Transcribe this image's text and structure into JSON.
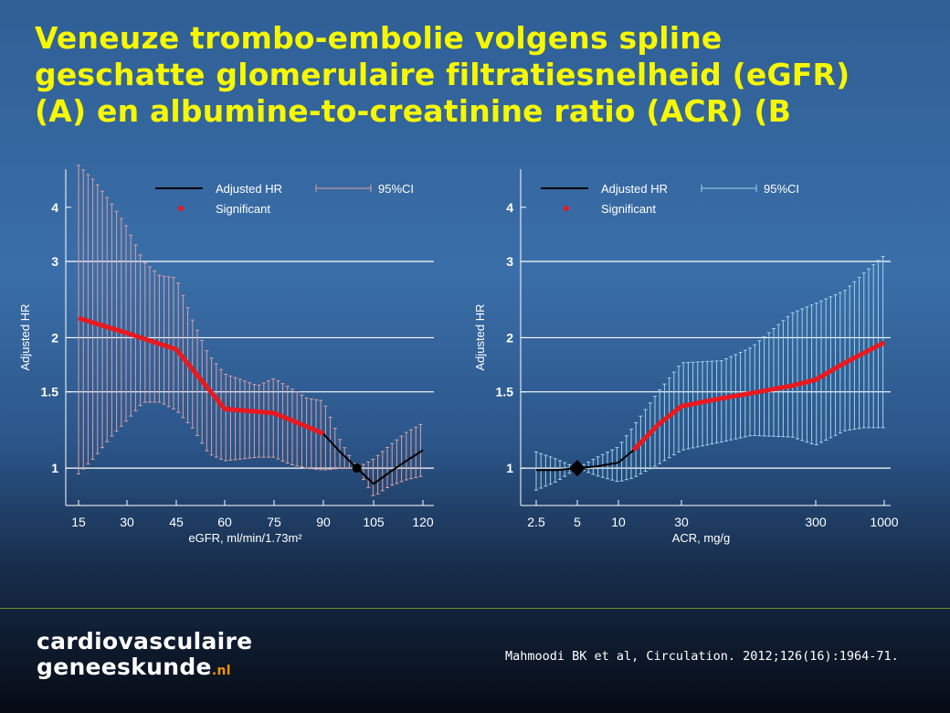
{
  "slide": {
    "title_lines": [
      "Veneuze trombo-embolie volgens spline",
      "geschatte glomerulaire filtratiesnelheid (eGFR)",
      "(A) en albumine-to-creatinine ratio (ACR) (B"
    ]
  },
  "colors": {
    "title": "#f7f700",
    "red_fit": "#e8191f",
    "black_fit": "#000000",
    "ci_a": "#d9a0a3",
    "ci_b": "#9fd3e9",
    "gridline": "#ffffff"
  },
  "chart_data": [
    {
      "type": "line",
      "panel": "A",
      "xlabel": "eGFR, ml/min/1.73m²",
      "ylabel": "Adjusted HR",
      "x_ticks": [
        15,
        30,
        45,
        60,
        75,
        90,
        105,
        120
      ],
      "x_tick_labels": [
        "15",
        "30",
        "45",
        "60",
        "75",
        "90",
        "105",
        "120"
      ],
      "xlim": [
        12,
        123
      ],
      "y_scale": "log",
      "y_ticks": [
        1,
        1.5,
        2,
        3,
        4
      ],
      "y_tick_labels": [
        "1",
        "1.5",
        "2",
        "3",
        "4"
      ],
      "ylim": [
        0.8,
        4.9
      ],
      "grid": "horizontal",
      "legend": {
        "placement": "top",
        "entries": [
          "Adjusted HR",
          "95%CI",
          "Significant"
        ]
      },
      "reference_point": {
        "x": 100,
        "y": 1
      },
      "series": [
        {
          "name": "Adjusted HR",
          "x": [
            15,
            30,
            45,
            60,
            75,
            88,
            90,
            95,
            100,
            105,
            110,
            115,
            120
          ],
          "y": [
            2.22,
            2.05,
            1.88,
            1.37,
            1.34,
            1.22,
            1.2,
            1.09,
            1.0,
            0.92,
            0.98,
            1.04,
            1.1
          ],
          "significant_x_range": [
            15,
            90
          ]
        }
      ],
      "ci": {
        "x": [
          15,
          20,
          25,
          30,
          35,
          40,
          45,
          50,
          55,
          60,
          65,
          70,
          75,
          80,
          85,
          90,
          95,
          100,
          105,
          110,
          115,
          120
        ],
        "lower": [
          0.97,
          1.06,
          1.18,
          1.29,
          1.42,
          1.42,
          1.36,
          1.24,
          1.08,
          1.04,
          1.05,
          1.06,
          1.06,
          1.02,
          1.0,
          0.99,
          1.0,
          1.0,
          0.86,
          0.91,
          0.94,
          0.96
        ],
        "upper": [
          5.0,
          4.6,
          4.1,
          3.6,
          3.0,
          2.78,
          2.75,
          2.2,
          1.83,
          1.65,
          1.6,
          1.55,
          1.61,
          1.53,
          1.45,
          1.43,
          1.16,
          1.0,
          1.05,
          1.13,
          1.21,
          1.27
        ]
      }
    },
    {
      "type": "line",
      "panel": "B",
      "xlabel": "ACR, mg/g",
      "ylabel": "Adjusted HR",
      "x_scale": "log",
      "x_ticks": [
        2.5,
        5,
        10,
        30,
        300,
        1000
      ],
      "x_tick_labels": [
        "2.5",
        "5",
        "10",
        "30",
        "300",
        "1000"
      ],
      "xlim": [
        2.2,
        1100
      ],
      "y_scale": "log",
      "y_ticks": [
        1,
        1.5,
        2,
        3,
        4
      ],
      "y_tick_labels": [
        "1",
        "1.5",
        "2",
        "3",
        "4"
      ],
      "ylim": [
        0.8,
        4.9
      ],
      "grid": "horizontal",
      "legend": {
        "placement": "top",
        "entries": [
          "Adjusted HR",
          "95%CI",
          "Significant"
        ]
      },
      "reference_point": {
        "x": 5,
        "y": 1
      },
      "series": [
        {
          "name": "Adjusted HR",
          "x": [
            2.5,
            3.5,
            5,
            7,
            10,
            13,
            20,
            30,
            60,
            100,
            200,
            300,
            500,
            1000
          ],
          "y": [
            0.99,
            0.99,
            1.0,
            1.01,
            1.03,
            1.1,
            1.26,
            1.39,
            1.45,
            1.49,
            1.55,
            1.6,
            1.75,
            1.95
          ],
          "significant_x_range": [
            13,
            1000
          ]
        }
      ],
      "ci": {
        "x": [
          2.5,
          3.5,
          5,
          7,
          10,
          13,
          20,
          30,
          60,
          100,
          200,
          300,
          500,
          700,
          1000
        ],
        "lower": [
          0.89,
          0.93,
          1.0,
          0.96,
          0.93,
          0.95,
          1.02,
          1.1,
          1.15,
          1.19,
          1.18,
          1.13,
          1.22,
          1.24,
          1.24
        ],
        "upper": [
          1.09,
          1.05,
          1.0,
          1.06,
          1.12,
          1.25,
          1.5,
          1.75,
          1.77,
          1.9,
          2.28,
          2.4,
          2.57,
          2.82,
          3.1
        ]
      }
    }
  ],
  "footer": {
    "brand_line1": "cardiovasculaire",
    "brand_line2": "geneeskunde",
    "brand_suffix": ".nl",
    "citation": "Mahmoodi BK et al, Circulation. 2012;126(16):1964-71."
  }
}
